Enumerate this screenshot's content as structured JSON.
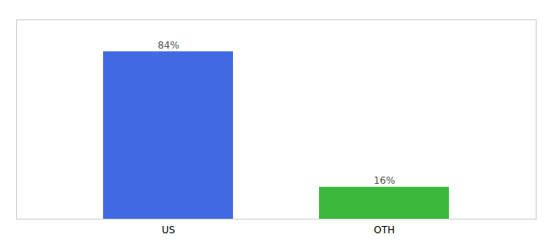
{
  "chart_data": {
    "type": "bar",
    "categories": [
      "US",
      "OTH"
    ],
    "values": [
      84,
      16
    ],
    "value_labels": [
      "84%",
      "16%"
    ],
    "colors": [
      "#4169E1",
      "#3CB83C"
    ],
    "ylim": [
      0,
      100
    ],
    "data_labels": true,
    "tick_labels": "x",
    "grid": false
  }
}
